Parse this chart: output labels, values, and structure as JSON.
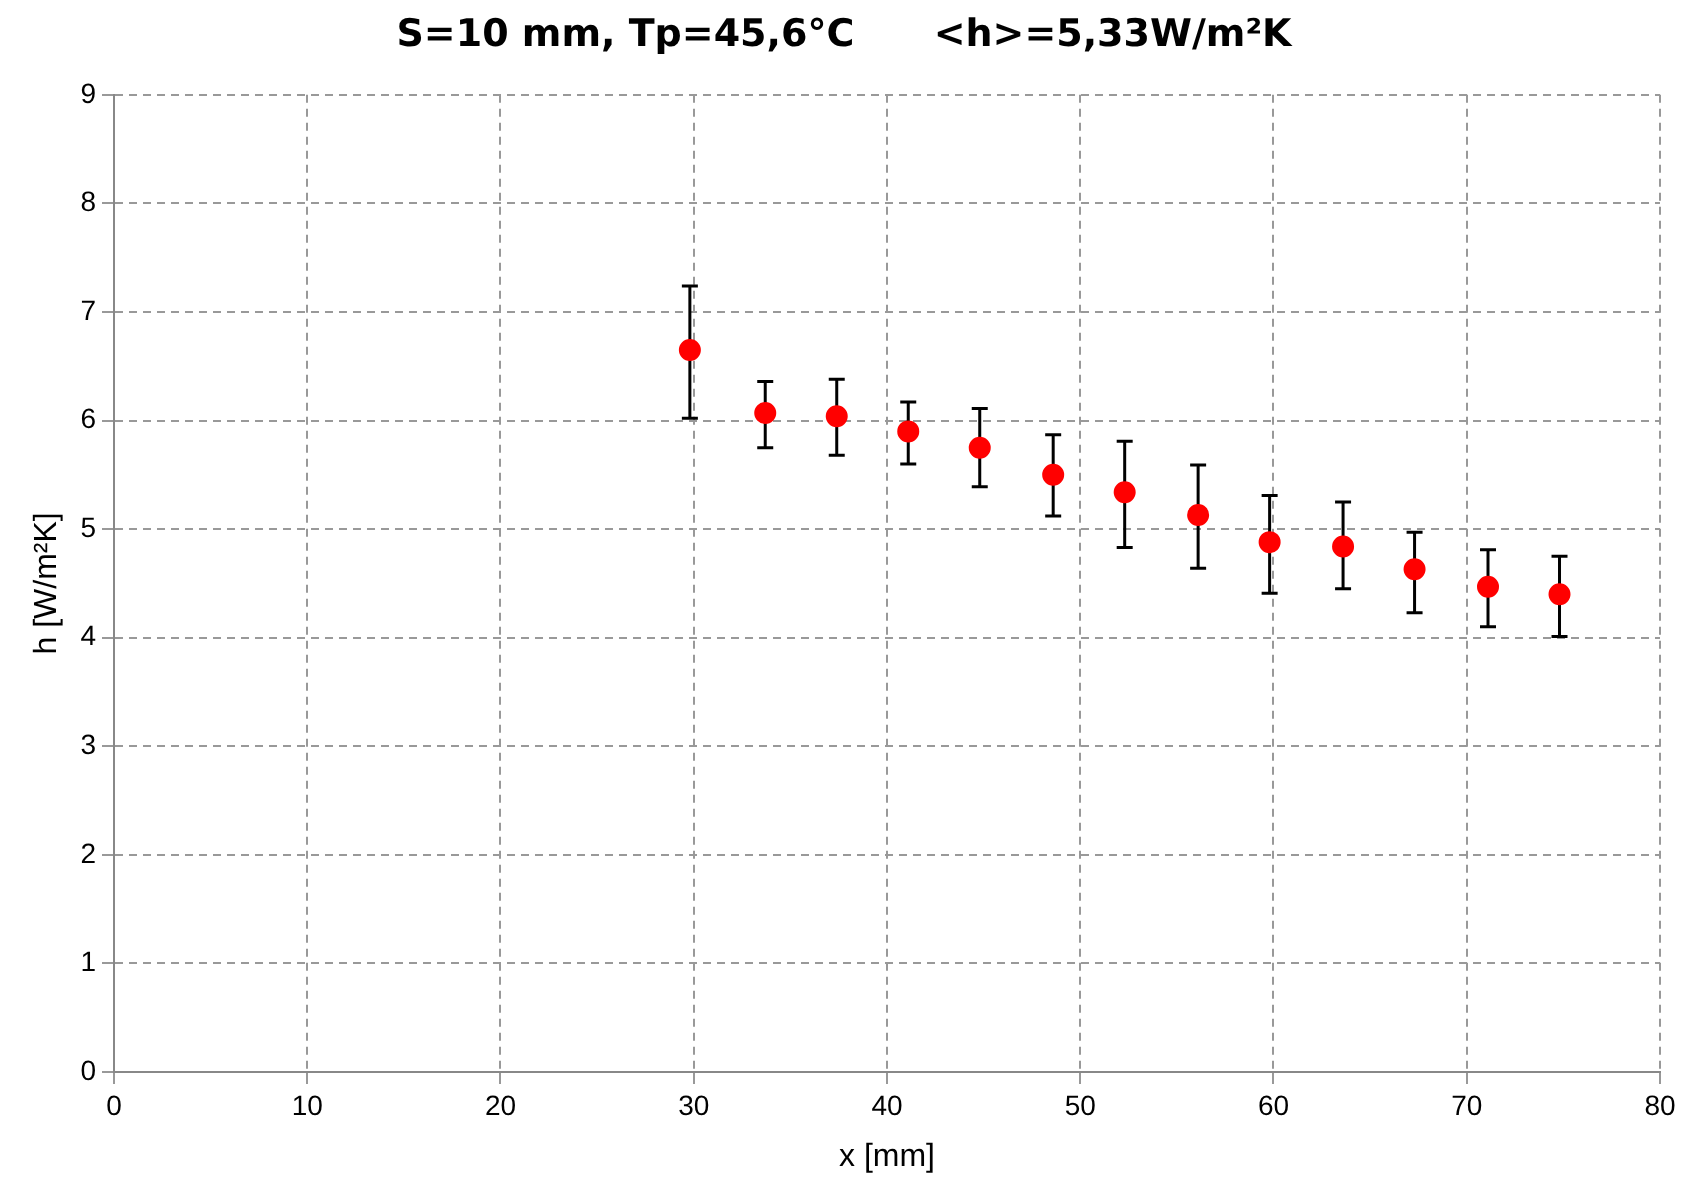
{
  "chart_data": {
    "type": "scatter",
    "title": "S=10 mm, Tp=45,6°C      <h>=5,33W/m²K",
    "xlabel": "x [mm]",
    "ylabel": "h [W/m²K]",
    "x": [
      29.8,
      33.7,
      37.4,
      41.1,
      44.8,
      48.6,
      52.3,
      56.1,
      59.8,
      63.6,
      67.3,
      71.1,
      74.8
    ],
    "series": [
      {
        "color": "#ff0000",
        "values": [
          6.65,
          6.07,
          6.04,
          5.9,
          5.75,
          5.5,
          5.34,
          5.13,
          4.88,
          4.84,
          4.63,
          4.47,
          4.4
        ],
        "errors": [
          [
            6.02,
            7.24
          ],
          [
            5.75,
            6.36
          ],
          [
            5.68,
            6.38
          ],
          [
            5.6,
            6.17
          ],
          [
            5.39,
            6.11
          ],
          [
            5.12,
            5.87
          ],
          [
            4.83,
            5.81
          ],
          [
            4.64,
            5.59
          ],
          [
            4.41,
            5.31
          ],
          [
            4.45,
            5.25
          ],
          [
            4.23,
            4.97
          ],
          [
            4.1,
            4.81
          ],
          [
            4.01,
            4.75
          ]
        ]
      }
    ],
    "xlim": [
      0,
      80
    ],
    "xticks": [
      0,
      10,
      20,
      30,
      40,
      50,
      60,
      70,
      80
    ],
    "ylim": [
      0,
      9
    ],
    "yticks": [
      0,
      1,
      2,
      3,
      4,
      5,
      6,
      7,
      8,
      9
    ],
    "grid": true,
    "marker": "circle",
    "legend": false
  }
}
